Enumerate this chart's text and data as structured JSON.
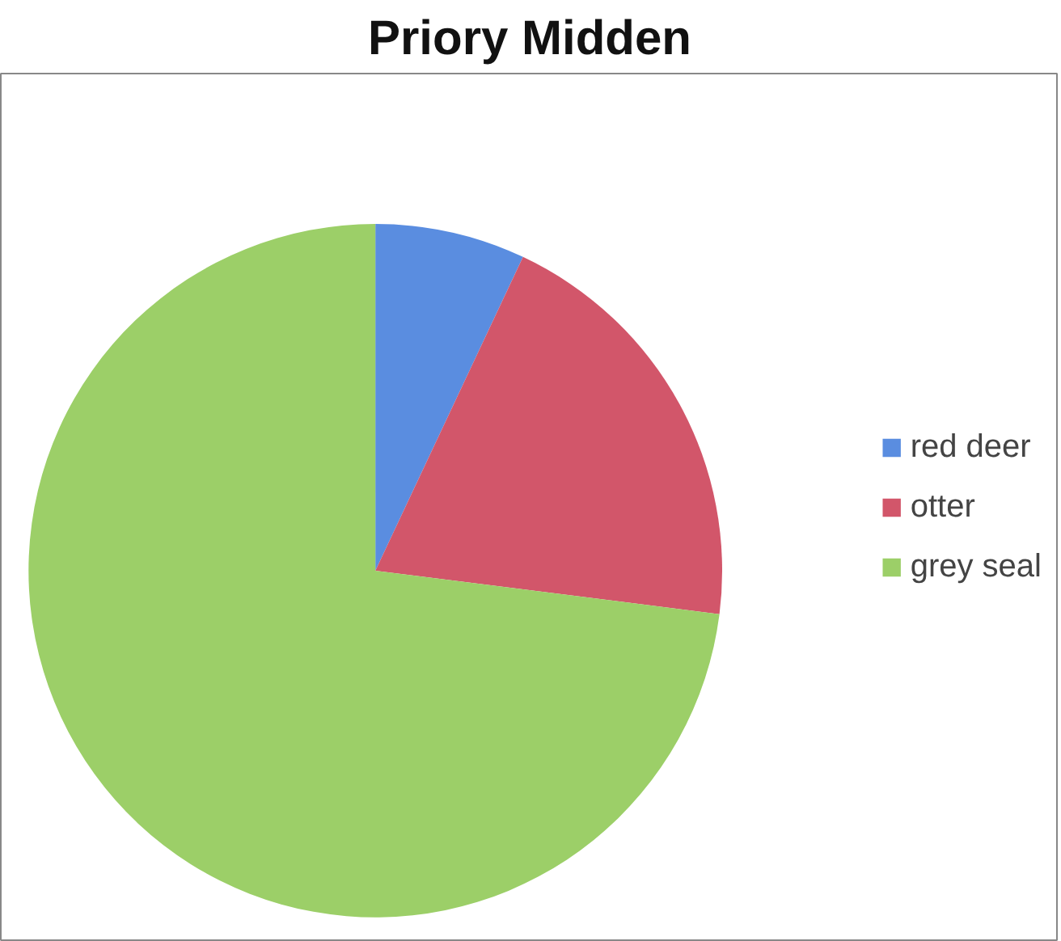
{
  "chart_data": {
    "type": "pie",
    "title": "Priory Midden",
    "categories": [
      "red deer",
      "otter",
      "grey seal"
    ],
    "values": [
      7,
      20,
      73
    ],
    "colors": [
      "#5a8de0",
      "#d2566a",
      "#9ccf68"
    ],
    "legend": "right"
  }
}
